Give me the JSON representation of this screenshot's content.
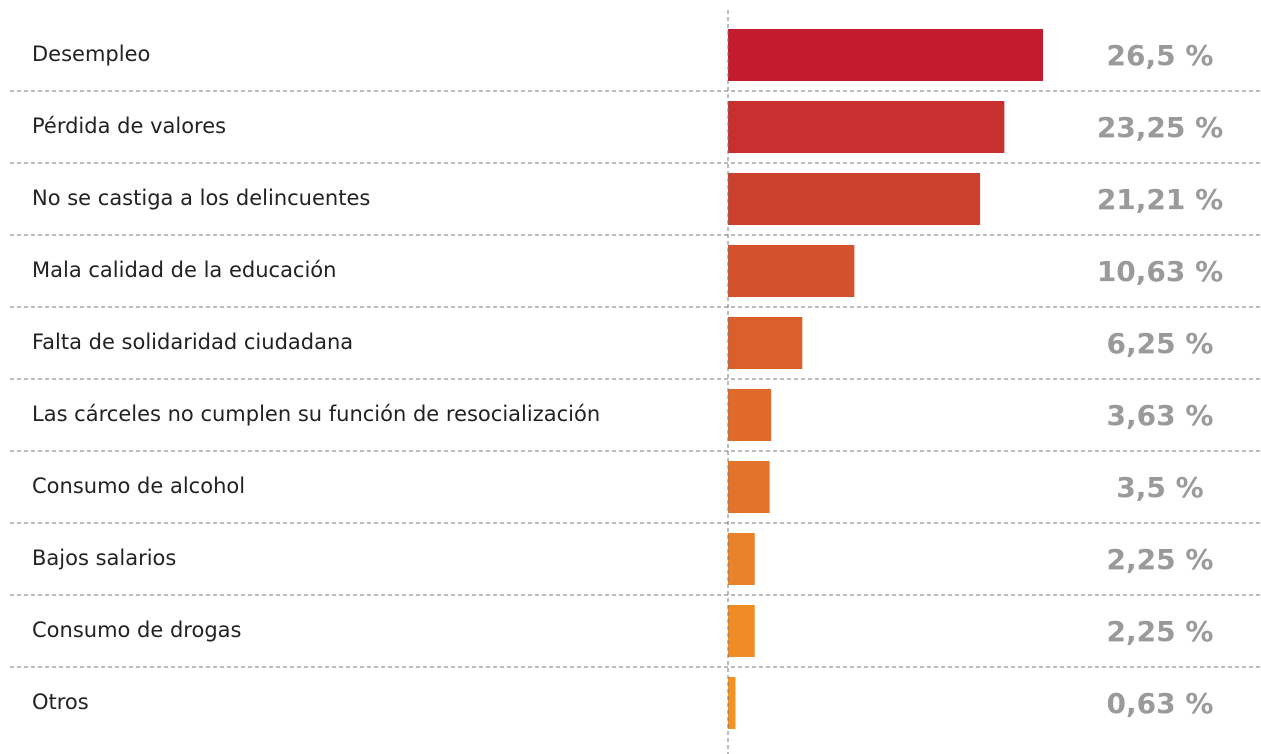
{
  "chart_data": {
    "type": "hbar",
    "categories": [
      "Desempleo",
      "Pérdida de valores",
      "No se castiga a los delincuentes",
      "Mala calidad de la educación",
      "Falta de solidaridad ciudadana",
      "Las cárceles no cumplen su función de resocialización",
      "Consumo de alcohol",
      "Bajos salarios",
      "Consumo de drogas",
      "Otros"
    ],
    "values": [
      26.5,
      23.25,
      21.21,
      10.63,
      6.25,
      3.63,
      3.5,
      2.25,
      2.25,
      0.63
    ],
    "value_labels": [
      "26,5 %",
      "23,25 %",
      "21,21 %",
      "10,63 %",
      "6,25 %",
      "3,63 %",
      "3,5 %",
      "2,25 %",
      "2,25 %",
      "0,63 %"
    ],
    "colors": [
      "#c41b2e",
      "#c8302f",
      "#cc412d",
      "#d4522b",
      "#da5f2b",
      "#df6a2a",
      "#e3722a",
      "#ea8229",
      "#ef8c25",
      "#f39422"
    ]
  }
}
